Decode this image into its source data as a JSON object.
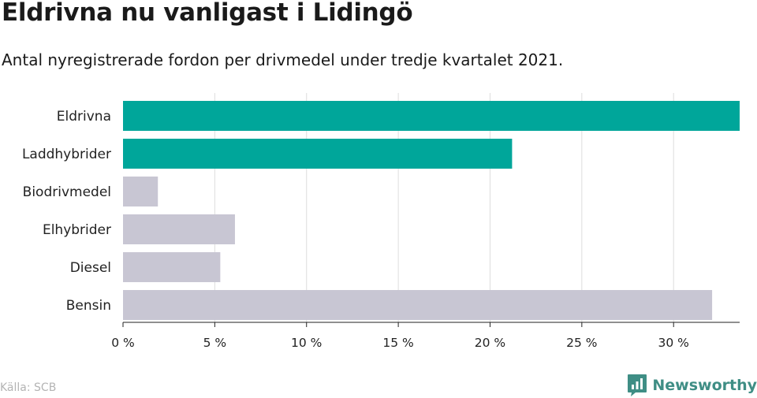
{
  "header": {
    "title": "Eldrivna nu vanligast i Lidingö",
    "subtitle": "Antal nyregistrerade fordon per drivmedel under tredje kvartalet 2021."
  },
  "footer": {
    "source": "Källa: SCB",
    "brand": "Newsworthy",
    "brand_icon": "bar-chart-speech-bubble-icon"
  },
  "colors": {
    "highlight": "#00a69a",
    "default": "#c8c6d3",
    "grid": "#dddddd",
    "axis": "#222222",
    "brand": "#3f8e85"
  },
  "chart_data": {
    "type": "bar",
    "orientation": "horizontal",
    "categories": [
      "Eldrivna",
      "Laddhybrider",
      "Biodrivmedel",
      "Elhybrider",
      "Diesel",
      "Bensin"
    ],
    "values": [
      33.6,
      21.2,
      1.9,
      6.1,
      5.3,
      32.1
    ],
    "highlighted": [
      true,
      true,
      false,
      false,
      false,
      false
    ],
    "xlim": [
      0,
      33.6
    ],
    "xticks": [
      0,
      5,
      10,
      15,
      20,
      25,
      30
    ],
    "xtick_labels": [
      "0 %",
      "5 %",
      "10 %",
      "15 %",
      "20 %",
      "25 %",
      "30 %"
    ],
    "grid": true,
    "legend": "none"
  }
}
